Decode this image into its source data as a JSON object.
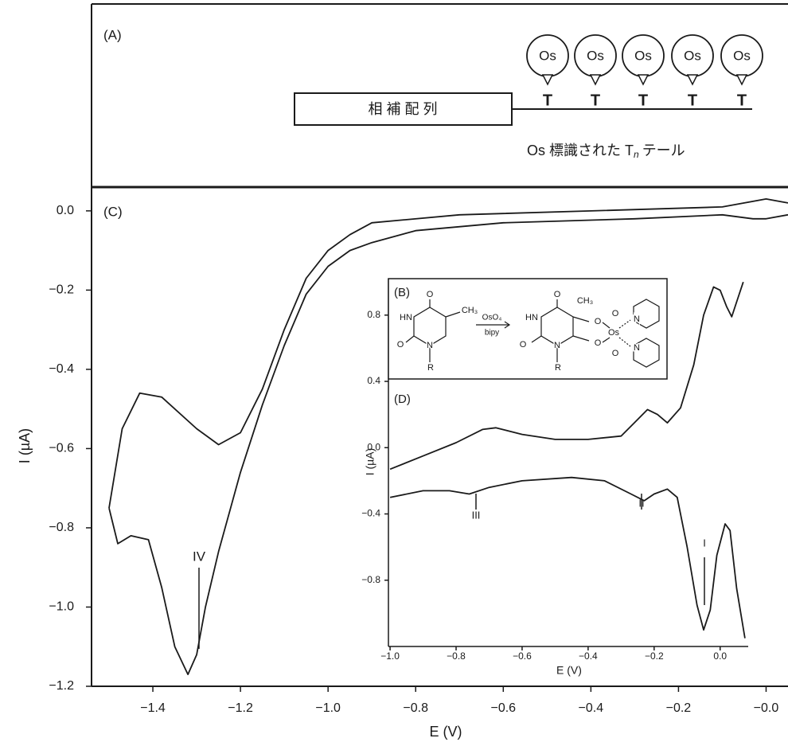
{
  "panel_a": {
    "label": "(A)",
    "box_text": "相 補 配 列",
    "balloons": [
      "Os",
      "Os",
      "Os",
      "Os",
      "Os"
    ],
    "nodes": [
      "T",
      "T",
      "T",
      "T",
      "T"
    ],
    "caption": "Os 標識された T",
    "caption_sub": "n",
    "caption_end": "テール"
  },
  "panel_b": {
    "label": "(B)",
    "reagent_top": "OsO₄",
    "reagent_bottom": "bipy",
    "atoms": [
      "O",
      "CH₃",
      "HN",
      "O",
      "N",
      "R",
      "O",
      "CH₃",
      "HN",
      "O",
      "N",
      "R",
      "O",
      "Os",
      "O",
      "O",
      "O",
      "N",
      "N"
    ]
  },
  "chart_data": [
    {
      "type": "line",
      "panel_label": "(C)",
      "xlabel": "E (V)",
      "ylabel": "I (µA)",
      "xlim": [
        -1.54,
        0.05
      ],
      "ylim": [
        -1.2,
        0.06
      ],
      "xticks": [
        {
          "value": -1.4,
          "label": "−1.4"
        },
        {
          "value": -1.2,
          "label": "−1.2"
        },
        {
          "value": -1.0,
          "label": "−1.0"
        },
        {
          "value": -0.8,
          "label": "−0.8"
        },
        {
          "value": -0.6,
          "label": "−0.6"
        },
        {
          "value": -0.4,
          "label": "−0.4"
        },
        {
          "value": -0.2,
          "label": "−0.2"
        },
        {
          "value": 0,
          "label": "−0.0"
        }
      ],
      "yticks": [
        {
          "value": 0,
          "label": "0.0"
        },
        {
          "value": -0.2,
          "label": "−0.2"
        },
        {
          "value": -0.4,
          "label": "−0.4"
        },
        {
          "value": -0.6,
          "label": "−0.6"
        },
        {
          "value": -0.8,
          "label": "−0.8"
        },
        {
          "value": -1.0,
          "label": "−1.0"
        },
        {
          "value": -1.2,
          "label": "−1.2"
        }
      ],
      "series": [
        {
          "color": "#1a1a1a",
          "x": [
            0.05,
            0.0,
            -0.03,
            -0.1,
            -0.3,
            -0.6,
            -0.8,
            -0.9,
            -0.95,
            -1.0,
            -1.05,
            -1.1,
            -1.15,
            -1.2,
            -1.25,
            -1.28,
            -1.3,
            -1.32,
            -1.35,
            -1.38,
            -1.41,
            -1.45,
            -1.48,
            -1.5
          ],
          "values": [
            -0.01,
            -0.02,
            -0.02,
            -0.01,
            -0.02,
            -0.03,
            -0.05,
            -0.08,
            -0.1,
            -0.14,
            -0.21,
            -0.34,
            -0.49,
            -0.66,
            -0.86,
            -1.0,
            -1.12,
            -1.17,
            -1.1,
            -0.95,
            -0.83,
            -0.82,
            -0.84,
            -0.75
          ]
        },
        {
          "color": "#1a1a1a",
          "x": [
            -1.5,
            -1.47,
            -1.43,
            -1.38,
            -1.3,
            -1.25,
            -1.2,
            -1.15,
            -1.1,
            -1.05,
            -1.0,
            -0.95,
            -0.9,
            -0.7,
            -0.4,
            -0.1,
            -0.05,
            0.0,
            0.05
          ],
          "values": [
            -0.75,
            -0.55,
            -0.46,
            -0.47,
            -0.55,
            -0.59,
            -0.56,
            -0.45,
            -0.3,
            -0.17,
            -0.1,
            -0.06,
            -0.03,
            -0.01,
            0.0,
            0.01,
            0.02,
            0.03,
            0.02
          ]
        }
      ],
      "annotations": [
        "IV"
      ]
    },
    {
      "type": "line",
      "panel_label": "(D)",
      "xlabel": "E (V)",
      "ylabel": "I (µA)",
      "xlim": [
        -1.005,
        0.085
      ],
      "ylim": [
        -1.2,
        1.02
      ],
      "xticks": [
        {
          "value": -1.0,
          "label": "−1.0"
        },
        {
          "value": -0.8,
          "label": "−0.8"
        },
        {
          "value": -0.6,
          "label": "−0.6"
        },
        {
          "value": -0.4,
          "label": "−0.4"
        },
        {
          "value": -0.2,
          "label": "−0.2"
        },
        {
          "value": 0,
          "label": "0.0"
        }
      ],
      "yticks": [
        {
          "value": 0.8,
          "label": "0.8"
        },
        {
          "value": 0.4,
          "label": "0.4"
        },
        {
          "value": 0,
          "label": "0.0"
        },
        {
          "value": -0.4,
          "label": "−0.4"
        },
        {
          "value": -0.8,
          "label": "−0.8"
        }
      ],
      "series": [
        {
          "color": "#1a1a1a",
          "x": [
            -1.0,
            -0.9,
            -0.8,
            -0.72,
            -0.68,
            -0.6,
            -0.5,
            -0.4,
            -0.3,
            -0.26,
            -0.22,
            -0.19,
            -0.16,
            -0.12,
            -0.08,
            -0.05,
            -0.02,
            0.0,
            0.02,
            0.035,
            0.05,
            0.07
          ],
          "values": [
            -0.13,
            -0.05,
            0.03,
            0.11,
            0.12,
            0.08,
            0.05,
            0.05,
            0.07,
            0.15,
            0.23,
            0.2,
            0.15,
            0.24,
            0.5,
            0.8,
            0.97,
            0.95,
            0.85,
            0.79,
            0.88,
            1.0
          ]
        },
        {
          "color": "#1a1a1a",
          "x": [
            -1.0,
            -0.9,
            -0.82,
            -0.76,
            -0.7,
            -0.6,
            -0.45,
            -0.35,
            -0.27,
            -0.23,
            -0.2,
            -0.16,
            -0.13,
            -0.1,
            -0.07,
            -0.05,
            -0.03,
            -0.01,
            0.015,
            0.03,
            0.05,
            0.075
          ],
          "values": [
            -0.3,
            -0.26,
            -0.26,
            -0.28,
            -0.24,
            -0.2,
            -0.18,
            -0.2,
            -0.28,
            -0.32,
            -0.28,
            -0.25,
            -0.3,
            -0.6,
            -0.95,
            -1.1,
            -0.98,
            -0.65,
            -0.46,
            -0.5,
            -0.85,
            -1.15
          ]
        }
      ],
      "annotations": [
        "III",
        "II",
        "I"
      ]
    }
  ]
}
